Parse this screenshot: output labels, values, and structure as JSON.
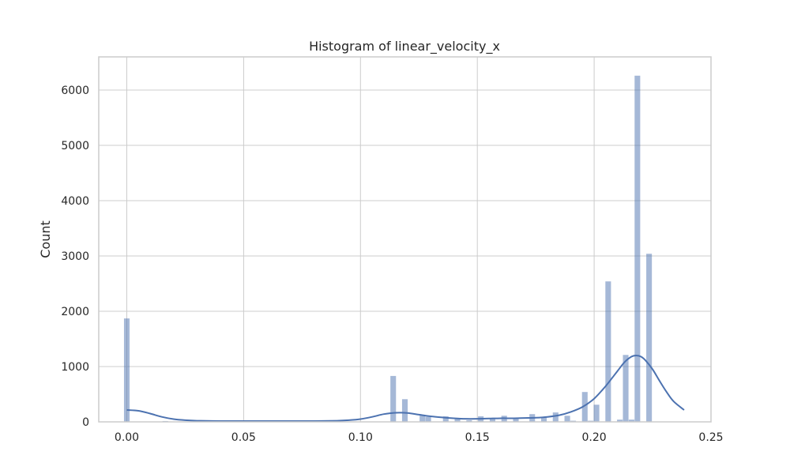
{
  "chart_data": {
    "type": "bar",
    "title": "Histogram of linear_velocity_x",
    "xlabel": "",
    "ylabel": "Count",
    "xlim": [
      -0.012,
      0.25
    ],
    "ylim": [
      0,
      6600
    ],
    "grid": true,
    "x_ticks": [
      "0.00",
      "0.05",
      "0.10",
      "0.15",
      "0.20",
      "0.25"
    ],
    "y_ticks": [
      "0",
      "1000",
      "2000",
      "3000",
      "4000",
      "5000",
      "6000"
    ],
    "bin_width": 0.0024,
    "bins": [
      {
        "x": 0.0,
        "count": 1870
      },
      {
        "x": 0.0165,
        "count": 15
      },
      {
        "x": 0.114,
        "count": 830
      },
      {
        "x": 0.119,
        "count": 410
      },
      {
        "x": 0.1265,
        "count": 130
      },
      {
        "x": 0.129,
        "count": 90
      },
      {
        "x": 0.1365,
        "count": 100
      },
      {
        "x": 0.1415,
        "count": 50
      },
      {
        "x": 0.1465,
        "count": 30
      },
      {
        "x": 0.1515,
        "count": 100
      },
      {
        "x": 0.1565,
        "count": 50
      },
      {
        "x": 0.1615,
        "count": 110
      },
      {
        "x": 0.1665,
        "count": 60
      },
      {
        "x": 0.1735,
        "count": 140
      },
      {
        "x": 0.1785,
        "count": 90
      },
      {
        "x": 0.1835,
        "count": 170
      },
      {
        "x": 0.1885,
        "count": 110
      },
      {
        "x": 0.191,
        "count": 20
      },
      {
        "x": 0.196,
        "count": 540
      },
      {
        "x": 0.1985,
        "count": 20
      },
      {
        "x": 0.201,
        "count": 310
      },
      {
        "x": 0.206,
        "count": 2540
      },
      {
        "x": 0.211,
        "count": 40
      },
      {
        "x": 0.2135,
        "count": 1210
      },
      {
        "x": 0.216,
        "count": 40
      },
      {
        "x": 0.2185,
        "count": 6260
      },
      {
        "x": 0.2235,
        "count": 3040
      }
    ],
    "kde": {
      "x": [
        0.0,
        0.005,
        0.01,
        0.015,
        0.02,
        0.025,
        0.03,
        0.04,
        0.05,
        0.06,
        0.07,
        0.08,
        0.09,
        0.095,
        0.1,
        0.105,
        0.11,
        0.115,
        0.12,
        0.125,
        0.13,
        0.135,
        0.14,
        0.145,
        0.15,
        0.155,
        0.16,
        0.165,
        0.17,
        0.175,
        0.18,
        0.185,
        0.19,
        0.195,
        0.2,
        0.205,
        0.21,
        0.213,
        0.216,
        0.218,
        0.22,
        0.222,
        0.225,
        0.228,
        0.231,
        0.234,
        0.2385
      ],
      "y": [
        215,
        200,
        150,
        90,
        50,
        30,
        20,
        15,
        15,
        15,
        15,
        15,
        20,
        30,
        50,
        90,
        140,
        165,
        160,
        130,
        100,
        80,
        65,
        55,
        55,
        60,
        65,
        65,
        70,
        75,
        90,
        120,
        180,
        270,
        420,
        650,
        920,
        1080,
        1180,
        1200,
        1180,
        1110,
        950,
        740,
        540,
        370,
        215
      ]
    },
    "bar_color": "#4c72b0",
    "bar_opacity": 0.5,
    "line_color": "#4c72b0",
    "grid_color": "#cccccc",
    "frame_color": "#cccccc"
  }
}
